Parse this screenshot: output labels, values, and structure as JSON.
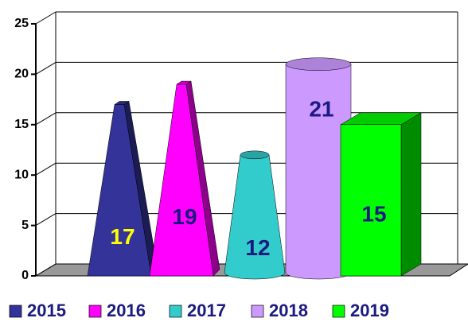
{
  "chart_data": {
    "type": "bar",
    "series": [
      {
        "name": "2015",
        "color": "#333399",
        "shape": "pyramid",
        "label_color": "#ffff00",
        "values": [
          17
        ]
      },
      {
        "name": "2016",
        "color": "#ff00ff",
        "shape": "pyramid",
        "label_color": "#1a1a80",
        "values": [
          19
        ]
      },
      {
        "name": "2017",
        "color": "#33cccc",
        "shape": "cone",
        "label_color": "#1a1a80",
        "values": [
          12
        ]
      },
      {
        "name": "2018",
        "color": "#cc99ff",
        "shape": "cylinder",
        "label_color": "#1a1a80",
        "values": [
          21
        ]
      },
      {
        "name": "2019",
        "color": "#00ff00",
        "shape": "box",
        "label_color": "#1a1a80",
        "values": [
          15
        ]
      }
    ],
    "ylim": [
      0,
      25
    ],
    "yticks": [
      0,
      5,
      10,
      15,
      20,
      25
    ],
    "grid": true,
    "legend": "bottom"
  }
}
